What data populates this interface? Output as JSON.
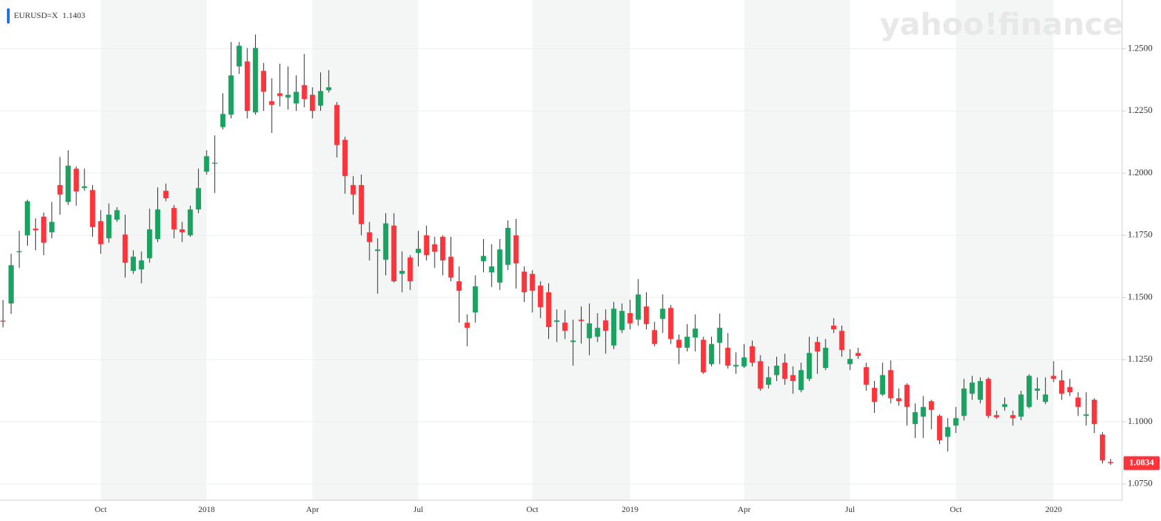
{
  "chart_data": {
    "type": "candlestick",
    "symbol": "EURUSD=X",
    "symbol_price": "1.1403",
    "watermark": "yahoo!finance",
    "last_price": "1.0834",
    "symbol_color": "#1a73e8",
    "up_color": "#1aa260",
    "down_color": "#ff333a",
    "grid": true,
    "ylim": [
      1.0685,
      1.2696
    ],
    "yticks": [
      {
        "value": 1.075,
        "label": "1.0750"
      },
      {
        "value": 1.1,
        "label": "1.1000"
      },
      {
        "value": 1.125,
        "label": "1.1250"
      },
      {
        "value": 1.15,
        "label": "1.1500"
      },
      {
        "value": 1.175,
        "label": "1.1750"
      },
      {
        "value": 1.2,
        "label": "1.2000"
      },
      {
        "value": 1.225,
        "label": "1.2250"
      },
      {
        "value": 1.25,
        "label": "1.2500"
      }
    ],
    "categories": [
      null,
      null,
      null,
      null,
      null,
      null,
      null,
      null,
      null,
      null,
      null,
      null,
      "Oct",
      null,
      null,
      null,
      null,
      null,
      null,
      null,
      null,
      null,
      null,
      null,
      null,
      "2018",
      null,
      null,
      null,
      null,
      null,
      null,
      null,
      null,
      null,
      null,
      null,
      null,
      "Apr",
      null,
      null,
      null,
      null,
      null,
      null,
      null,
      null,
      null,
      null,
      null,
      null,
      "Jul",
      null,
      null,
      null,
      null,
      null,
      null,
      null,
      null,
      null,
      null,
      null,
      null,
      null,
      "Oct",
      null,
      null,
      null,
      null,
      null,
      null,
      null,
      null,
      null,
      null,
      null,
      "2019",
      null,
      null,
      null,
      null,
      null,
      null,
      null,
      null,
      null,
      null,
      null,
      null,
      null,
      "Apr",
      null,
      null,
      null,
      null,
      null,
      null,
      null,
      null,
      null,
      null,
      null,
      null,
      "Jul",
      null,
      null,
      null,
      null,
      null,
      null,
      null,
      null,
      null,
      null,
      null,
      null,
      "Oct",
      null,
      null,
      null,
      null,
      null,
      null,
      null,
      null,
      null,
      null,
      null,
      "2020",
      null,
      null,
      null,
      null,
      null,
      null,
      null
    ],
    "open": [
      1.1407,
      1.1476,
      1.1683,
      1.175,
      1.1777,
      1.1825,
      1.1762,
      1.1952,
      1.1884,
      1.2018,
      1.194,
      1.1932,
      1.1807,
      1.1738,
      1.1813,
      1.1753,
      1.1607,
      1.1613,
      1.1658,
      1.1735,
      1.1929,
      1.186,
      1.1774,
      1.175,
      1.1854,
      1.2006,
      1.2038,
      1.2185,
      1.2235,
      1.2429,
      1.2449,
      1.2244,
      1.2411,
      1.2289,
      1.2321,
      1.2304,
      1.228,
      1.2354,
      1.2315,
      1.2271,
      1.2333,
      1.2274,
      1.2134,
      1.1952,
      1.1952,
      1.1762,
      1.1687,
      1.1652,
      1.1789,
      1.1595,
      1.1661,
      1.1679,
      1.175,
      1.1714,
      1.1744,
      1.1664,
      1.1565,
      1.1399,
      1.144,
      1.1646,
      1.1601,
      1.156,
      1.1631,
      1.175,
      1.1604,
      1.1595,
      1.1548,
      1.1521,
      1.1402,
      1.1399,
      1.1321,
      1.1411,
      1.1336,
      1.1342,
      1.1408,
      1.1307,
      1.1369,
      1.1437,
      1.1411,
      1.1464,
      1.1369,
      1.1414,
      1.1458,
      1.133,
      1.1298,
      1.1339,
      1.133,
      1.1232,
      1.1318,
      1.1298,
      1.1223,
      1.1223,
      1.1304,
      1.1244,
      1.1149,
      1.1188,
      1.1238,
      1.1188,
      1.1128,
      1.1173,
      1.1321,
      1.1217,
      1.1387,
      1.1366,
      1.1232,
      1.1277,
      1.122,
      1.1137,
      1.111,
      1.1208,
      1.1095,
      1.1149,
      1.0991,
      1.1021,
      1.1083,
      1.1024,
      1.094,
      1.0985,
      1.1024,
      1.1113,
      1.1089,
      1.1173,
      1.1027,
      1.106,
      1.1027,
      1.1021,
      1.106,
      1.1125,
      1.108,
      1.1185,
      1.1167,
      1.114,
      1.1098,
      1.1024,
      1.1089,
      1.0949,
      1.0839
    ],
    "high": [
      1.149,
      1.1676,
      1.1768,
      1.1893,
      1.1818,
      1.1842,
      1.1884,
      1.2065,
      1.2092,
      1.2027,
      1.2018,
      1.1952,
      1.1851,
      1.1878,
      1.1863,
      1.1833,
      1.169,
      1.1685,
      1.1857,
      1.1943,
      1.1958,
      1.1872,
      1.1804,
      1.1869,
      1.2018,
      1.2092,
      1.2152,
      1.2321,
      1.2527,
      1.2527,
      1.2503,
      1.2557,
      1.2443,
      1.2381,
      1.244,
      1.2429,
      1.2393,
      1.2479,
      1.2345,
      1.2405,
      1.2414,
      1.2286,
      1.2146,
      1.1988,
      1.1994,
      1.1804,
      1.1738,
      1.1839,
      1.1839,
      1.1685,
      1.167,
      1.1768,
      1.1789,
      1.1744,
      1.175,
      1.1744,
      1.1625,
      1.1432,
      1.1589,
      1.1735,
      1.1714,
      1.1735,
      1.181,
      1.1816,
      1.1625,
      1.161,
      1.1565,
      1.1557,
      1.1452,
      1.145,
      1.1411,
      1.1464,
      1.1476,
      1.1437,
      1.1452,
      1.1482,
      1.1476,
      1.1491,
      1.1574,
      1.1521,
      1.1402,
      1.1512,
      1.147,
      1.1351,
      1.1393,
      1.1432,
      1.1342,
      1.1342,
      1.1435,
      1.1357,
      1.128,
      1.1313,
      1.1327,
      1.1268,
      1.1223,
      1.1262,
      1.1274,
      1.1223,
      1.1238,
      1.1342,
      1.1342,
      1.1333,
      1.1417,
      1.1387,
      1.1292,
      1.1298,
      1.1238,
      1.1164,
      1.1238,
      1.1247,
      1.1134,
      1.1155,
      1.1074,
      1.1104,
      1.1089,
      1.103,
      1.1015,
      1.106,
      1.1173,
      1.1185,
      1.1179,
      1.1179,
      1.1045,
      1.1098,
      1.1045,
      1.1125,
      1.1191,
      1.1179,
      1.1179,
      1.1244,
      1.1208,
      1.1173,
      1.1119,
      1.1119,
      1.1095,
      1.0958,
      1.0851
    ],
    "low": [
      1.138,
      1.1434,
      1.1619,
      1.1708,
      1.169,
      1.167,
      1.1738,
      1.1833,
      1.1872,
      1.1869,
      1.1929,
      1.1744,
      1.1676,
      1.172,
      1.1804,
      1.158,
      1.1595,
      1.1557,
      1.164,
      1.1723,
      1.1887,
      1.1738,
      1.1723,
      1.1744,
      1.1839,
      1.1994,
      1.192,
      1.2176,
      1.222,
      1.2399,
      1.222,
      1.2235,
      1.225,
      1.2161,
      1.2268,
      1.2256,
      1.225,
      1.2265,
      1.222,
      1.225,
      1.2324,
      1.2063,
      1.1917,
      1.1833,
      1.175,
      1.1649,
      1.1515,
      1.1589,
      1.156,
      1.1521,
      1.153,
      1.1625,
      1.1649,
      1.1619,
      1.1589,
      1.1565,
      1.1399,
      1.1304,
      1.1399,
      1.1601,
      1.1542,
      1.153,
      1.161,
      1.1536,
      1.1482,
      1.144,
      1.1417,
      1.1333,
      1.1321,
      1.1333,
      1.1226,
      1.1315,
      1.1268,
      1.1321,
      1.1274,
      1.1292,
      1.1357,
      1.1372,
      1.1387,
      1.1372,
      1.1304,
      1.1357,
      1.1313,
      1.1232,
      1.1283,
      1.1283,
      1.1193,
      1.1223,
      1.1232,
      1.1214,
      1.1193,
      1.1217,
      1.1223,
      1.1125,
      1.1134,
      1.1164,
      1.1149,
      1.1113,
      1.1119,
      1.1164,
      1.1193,
      1.1208,
      1.1357,
      1.1262,
      1.1208,
      1.1253,
      1.1125,
      1.1036,
      1.1104,
      1.1074,
      1.1065,
      1.0985,
      1.0935,
      1.0935,
      1.097,
      1.0911,
      1.0881,
      1.0955,
      1.1006,
      1.1089,
      1.1074,
      1.1015,
      1.1012,
      1.1045,
      1.0985,
      1.1006,
      1.1054,
      1.1089,
      1.1071,
      1.116,
      1.1089,
      1.1104,
      1.1024,
      1.0985,
      1.0955,
      1.0833,
      1.0827
    ],
    "close": [
      1.1403,
      1.163,
      1.1686,
      1.1887,
      1.177,
      1.172,
      1.1804,
      1.1914,
      1.203,
      1.1926,
      1.1947,
      1.1783,
      1.1714,
      1.1833,
      1.1851,
      1.164,
      1.1664,
      1.1649,
      1.1774,
      1.1854,
      1.1899,
      1.1774,
      1.1762,
      1.1854,
      1.194,
      1.2068,
      1.2042,
      1.2238,
      1.2393,
      1.2512,
      1.225,
      1.2503,
      1.2327,
      1.2274,
      1.231,
      1.2315,
      1.2327,
      1.2298,
      1.225,
      1.233,
      1.2345,
      1.2113,
      1.1988,
      1.1914,
      1.1795,
      1.1723,
      1.1693,
      1.1798,
      1.1565,
      1.1607,
      1.1565,
      1.1696,
      1.167,
      1.1684,
      1.1649,
      1.158,
      1.1527,
      1.1378,
      1.1545,
      1.1667,
      1.1625,
      1.1693,
      1.178,
      1.1637,
      1.1521,
      1.1527,
      1.1461,
      1.1381,
      1.1408,
      1.1366,
      1.1327,
      1.1405,
      1.1396,
      1.1378,
      1.1366,
      1.1455,
      1.1446,
      1.1396,
      1.1512,
      1.1393,
      1.1313,
      1.1455,
      1.1333,
      1.1298,
      1.1342,
      1.1375,
      1.1199,
      1.1313,
      1.1378,
      1.1226,
      1.1229,
      1.1259,
      1.1238,
      1.1134,
      1.1179,
      1.1226,
      1.1173,
      1.1164,
      1.1208,
      1.1277,
      1.1283,
      1.1298,
      1.1372,
      1.1289,
      1.1253,
      1.1265,
      1.1149,
      1.108,
      1.1188,
      1.1095,
      1.1083,
      1.106,
      1.1039,
      1.106,
      1.1048,
      1.0926,
      1.0979,
      1.1015,
      1.1134,
      1.1158,
      1.1164,
      1.1024,
      1.1018,
      1.1071,
      1.1015,
      1.111,
      1.1185,
      1.1134,
      1.111,
      1.1173,
      1.1113,
      1.1119,
      1.106,
      1.103,
      1.0991,
      1.0845,
      1.0834
    ]
  }
}
